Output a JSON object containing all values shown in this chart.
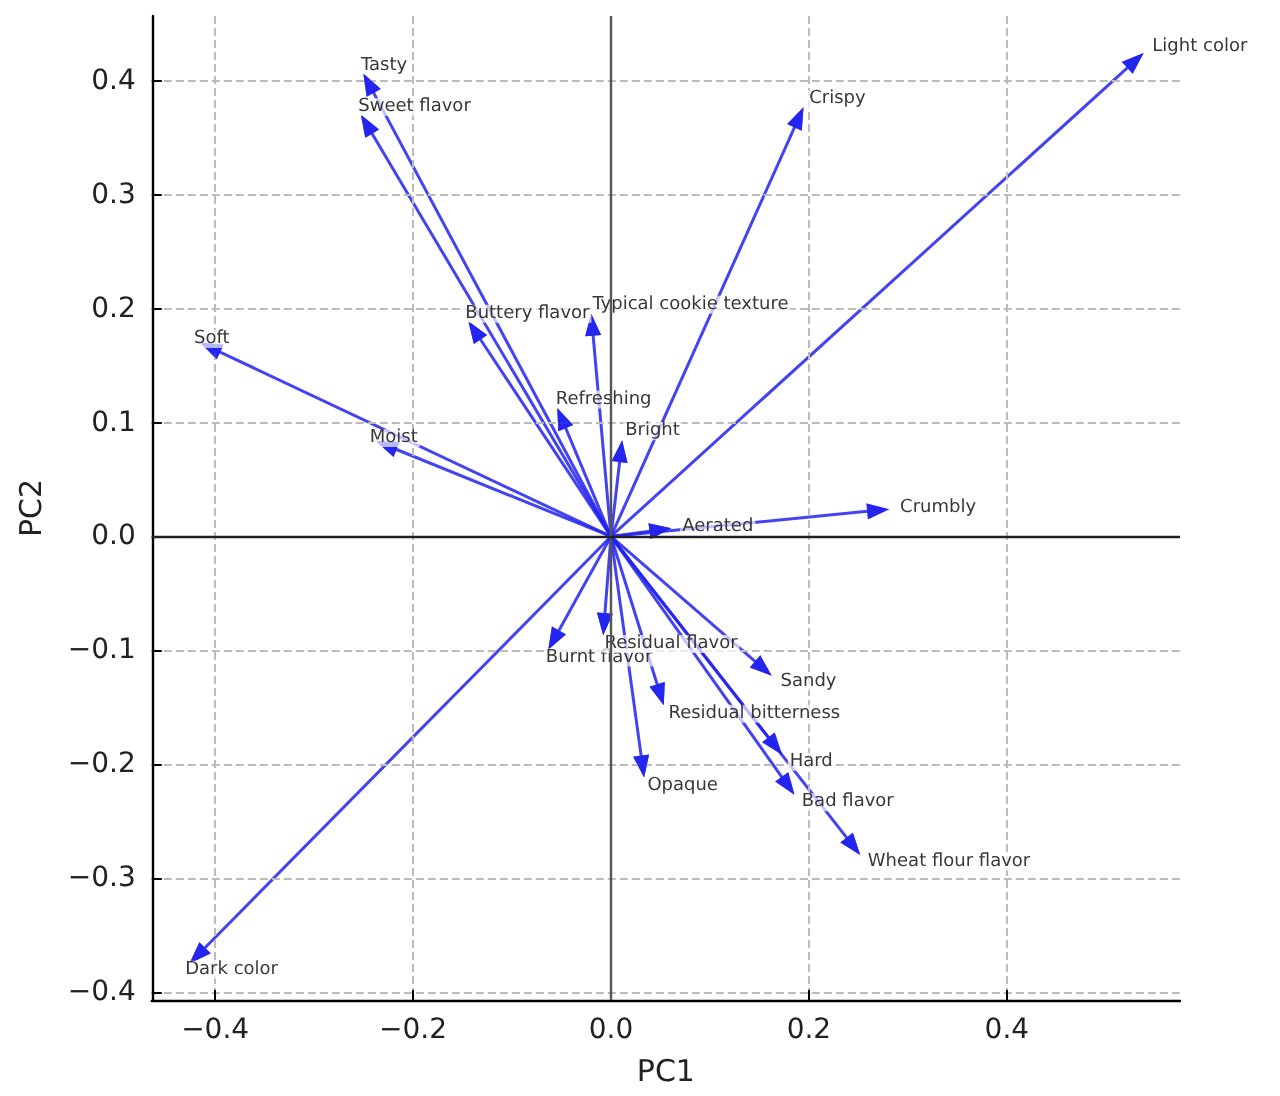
{
  "chart_data": {
    "type": "scatter",
    "xlabel": "PC1",
    "ylabel": "PC2",
    "marker": "triangle",
    "x": [
      0.53,
      0.19,
      0.27,
      0.05,
      0.01,
      -0.019,
      -0.05,
      -0.138,
      -0.245,
      -0.247,
      -0.405,
      -0.227,
      -0.418,
      -0.058,
      -0.007,
      0.05,
      0.032,
      0.154,
      0.166,
      0.179,
      0.245
    ],
    "series": [
      {
        "color": "#2222f0",
        "values": [
          0.418,
          0.368,
          0.023,
          0.006,
          0.075,
          0.186,
          0.104,
          0.181,
          0.398,
          0.362,
          0.166,
          0.08,
          -0.368,
          -0.091,
          -0.077,
          -0.139,
          -0.202,
          -0.116,
          -0.184,
          -0.219,
          -0.272
        ]
      }
    ],
    "annotations": [
      {
        "text": "Light color",
        "x": 0.53,
        "y": 0.418
      },
      {
        "text": "Crispy",
        "x": 0.19,
        "y": 0.368
      },
      {
        "text": "Crumbly",
        "x": 0.27,
        "y": 0.023
      },
      {
        "text": "Aerated",
        "x": 0.05,
        "y": 0.006
      },
      {
        "text": "Bright",
        "x": 0.01,
        "y": 0.075
      },
      {
        "text": "Typical cookie texture",
        "x": -0.019,
        "y": 0.186
      },
      {
        "text": "Refreshing",
        "x": -0.05,
        "y": 0.104
      },
      {
        "text": "Buttery flavor",
        "x": -0.138,
        "y": 0.181
      },
      {
        "text": "Tasty",
        "x": -0.245,
        "y": 0.398
      },
      {
        "text": "Sweet flavor",
        "x": -0.247,
        "y": 0.362
      },
      {
        "text": "Soft",
        "x": -0.405,
        "y": 0.166
      },
      {
        "text": "Moist",
        "x": -0.227,
        "y": 0.08
      },
      {
        "text": "Dark color",
        "x": -0.418,
        "y": -0.368
      },
      {
        "text": "Burnt flavor",
        "x": -0.058,
        "y": -0.091
      },
      {
        "text": "Residual flavor",
        "x": -0.007,
        "y": -0.077
      },
      {
        "text": "Residual bitterness",
        "x": 0.05,
        "y": -0.139
      },
      {
        "text": "Opaque",
        "x": 0.032,
        "y": -0.202
      },
      {
        "text": "Sandy",
        "x": 0.154,
        "y": -0.116
      },
      {
        "text": "Hard",
        "x": 0.166,
        "y": -0.184
      },
      {
        "text": "Bad flavor",
        "x": 0.179,
        "y": -0.219
      },
      {
        "text": "Wheat flour flavor",
        "x": 0.245,
        "y": -0.272
      }
    ],
    "xlim": [
      -0.464,
      0.575
    ],
    "ylim": [
      -0.407,
      0.457
    ],
    "xticks": [
      {
        "value": -0.4,
        "label": "−0.4"
      },
      {
        "value": -0.2,
        "label": "−0.2"
      },
      {
        "value": 0,
        "label": "0.0"
      },
      {
        "value": 0.2,
        "label": "0.2"
      },
      {
        "value": 0.4,
        "label": "0.4"
      }
    ],
    "yticks": [
      {
        "value": -0.4,
        "label": "−0.4"
      },
      {
        "value": -0.3,
        "label": "−0.3"
      },
      {
        "value": -0.2,
        "label": "−0.2"
      },
      {
        "value": -0.1,
        "label": "−0.1"
      },
      {
        "value": 0,
        "label": "0.0"
      },
      {
        "value": 0.1,
        "label": "0.1"
      },
      {
        "value": 0.2,
        "label": "0.2"
      },
      {
        "value": 0.3,
        "label": "0.3"
      },
      {
        "value": 0.4,
        "label": "0.4"
      }
    ],
    "ref_lines": [
      {
        "axis": "x",
        "value": 0,
        "color": "#555555"
      },
      {
        "axis": "y",
        "value": 0,
        "color": "#222222"
      }
    ],
    "grid": true
  }
}
